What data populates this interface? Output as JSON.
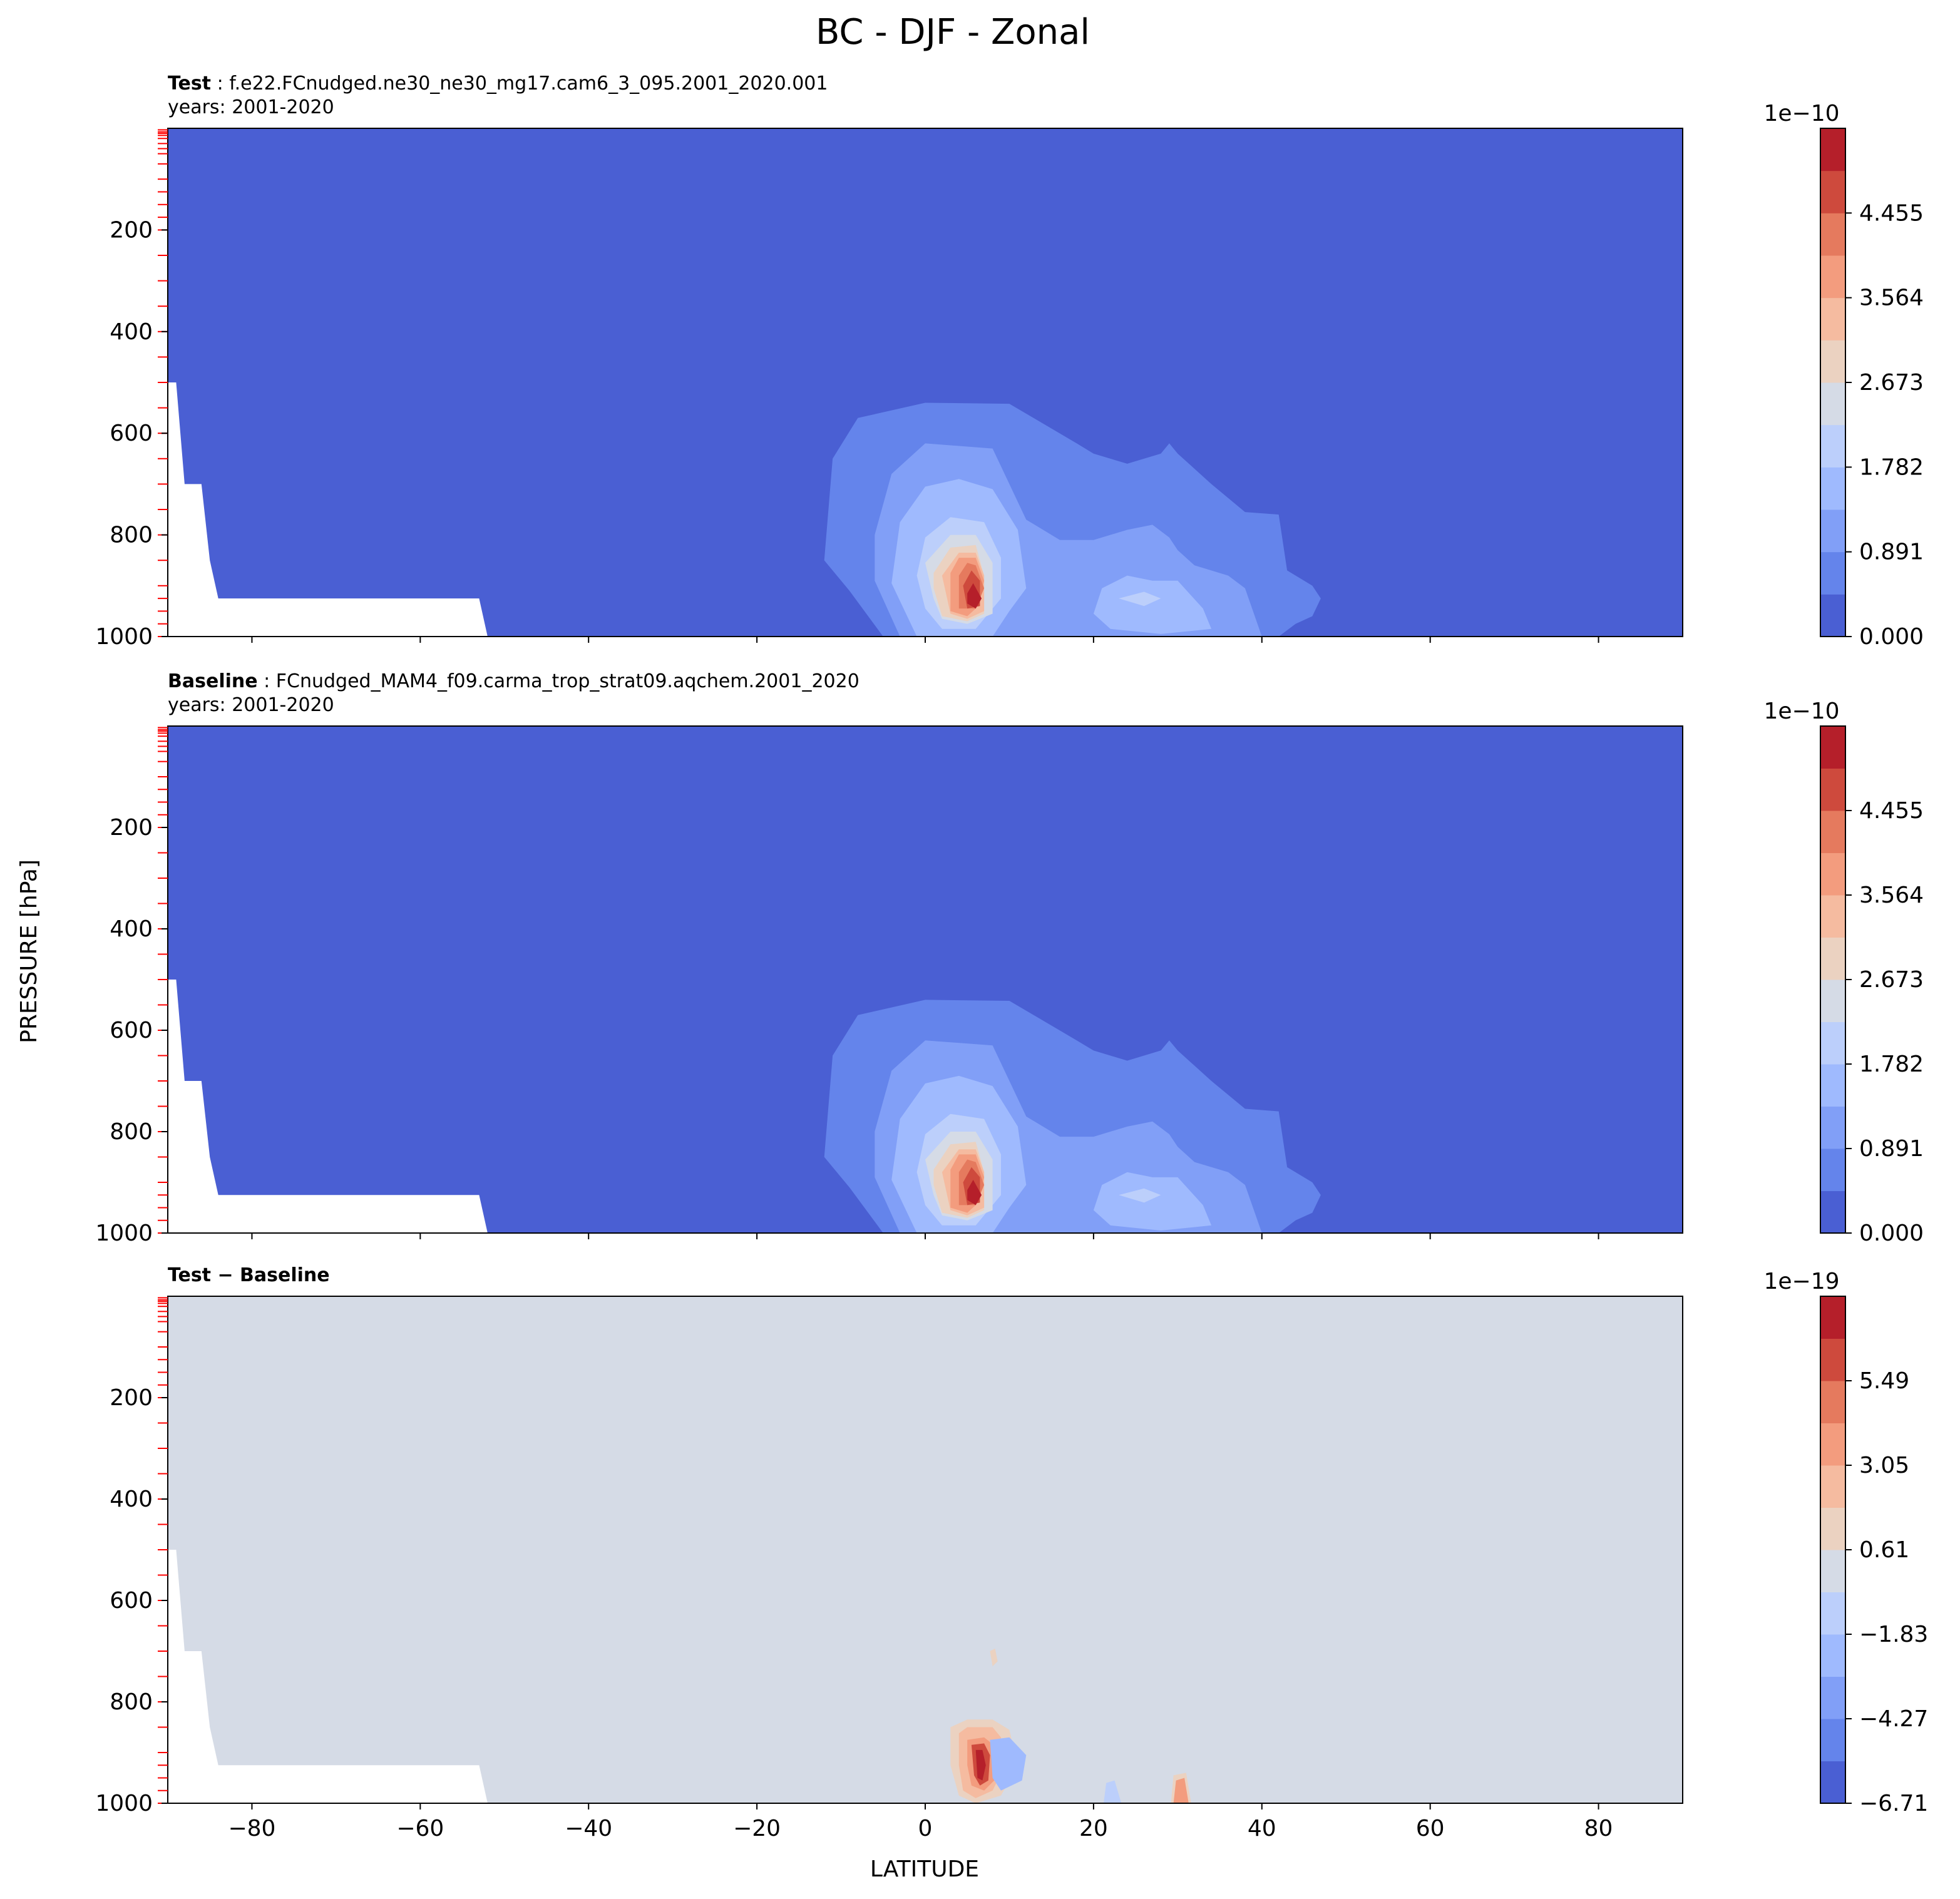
{
  "figure": {
    "suptitle": "BC - DJF - Zonal",
    "ylabel": "PRESSURE [hPa]",
    "xlabel": "LATITUDE"
  },
  "chart_data": [
    {
      "type": "heatmap",
      "panel": "test",
      "title_bold": "Test",
      "title_rest": ": f.e22.FCnudged.ne30_ne30_mg17.cam6_3_095.2001_2020.001",
      "years": "years: 2001-2020",
      "xlim": [
        -90,
        90
      ],
      "ylim": [
        1000,
        0
      ],
      "xticks": [
        "−80",
        "−60",
        "−40",
        "−20",
        "0",
        "20",
        "40",
        "60",
        "80"
      ],
      "yticks": [
        "200",
        "400",
        "600",
        "800",
        "1000"
      ],
      "colorbar": {
        "exponent": "1e−10",
        "ticks": [
          "0.000",
          "0.891",
          "1.782",
          "2.673",
          "3.564",
          "4.455"
        ],
        "levels": [
          0,
          0.446,
          0.891,
          1.337,
          1.782,
          2.228,
          2.673,
          3.119,
          3.564,
          4.01,
          4.455,
          4.901
        ]
      },
      "features": {
        "background_level": 0,
        "max_location": {
          "lat": 6,
          "pressure": 925
        },
        "secondary_maximum": {
          "lat": 25,
          "pressure": 940
        },
        "plume_top_pressure": 540
      }
    },
    {
      "type": "heatmap",
      "panel": "baseline",
      "title_bold": "Baseline",
      "title_rest": ": FCnudged_MAM4_f09.carma_trop_strat09.aqchem.2001_2020",
      "years": "years: 2001-2020",
      "xlim": [
        -90,
        90
      ],
      "ylim": [
        1000,
        0
      ],
      "xticks": [
        "−80",
        "−60",
        "−40",
        "−20",
        "0",
        "20",
        "40",
        "60",
        "80"
      ],
      "yticks": [
        "200",
        "400",
        "600",
        "800",
        "1000"
      ],
      "colorbar": {
        "exponent": "1e−10",
        "ticks": [
          "0.000",
          "0.891",
          "1.782",
          "2.673",
          "3.564",
          "4.455"
        ],
        "levels": [
          0,
          0.446,
          0.891,
          1.337,
          1.782,
          2.228,
          2.673,
          3.119,
          3.564,
          4.01,
          4.455,
          4.901
        ]
      },
      "features": {
        "background_level": 0,
        "max_location": {
          "lat": 6,
          "pressure": 925
        },
        "secondary_maximum": {
          "lat": 25,
          "pressure": 940
        },
        "plume_top_pressure": 540
      }
    },
    {
      "type": "heatmap",
      "panel": "difference",
      "title_bold": "Test − Baseline",
      "xlim": [
        -90,
        90
      ],
      "ylim": [
        1000,
        0
      ],
      "xticks": [
        "−80",
        "−60",
        "−40",
        "−20",
        "0",
        "20",
        "40",
        "60",
        "80"
      ],
      "yticks": [
        "200",
        "400",
        "600",
        "800",
        "1000"
      ],
      "colorbar": {
        "exponent": "1e−19",
        "ticks": [
          "−6.71",
          "−4.27",
          "−1.83",
          "0.61",
          "3.05",
          "5.49"
        ],
        "levels": [
          -6.71,
          -5.49,
          -4.27,
          -3.05,
          -1.83,
          -0.61,
          0.61,
          1.83,
          3.05,
          4.27,
          5.49,
          6.71
        ]
      },
      "features": {
        "background_level": 0,
        "max_location": {
          "lat": 6,
          "pressure": 925
        },
        "secondary_maximum": {
          "lat": 30,
          "pressure": 980
        },
        "plume_top_pressure": 860
      }
    }
  ],
  "colors": {
    "cmap": [
      "#4a5fd3",
      "#6484eb",
      "#819ff7",
      "#9fbafe",
      "#bccffb",
      "#d5dbe6",
      "#ebd2c1",
      "#f5bba0",
      "#f39c7e",
      "#e57a5e",
      "#ce4a3d",
      "#b51f2a"
    ],
    "missing": "#ffffff",
    "tick_red": "#ff0000"
  }
}
